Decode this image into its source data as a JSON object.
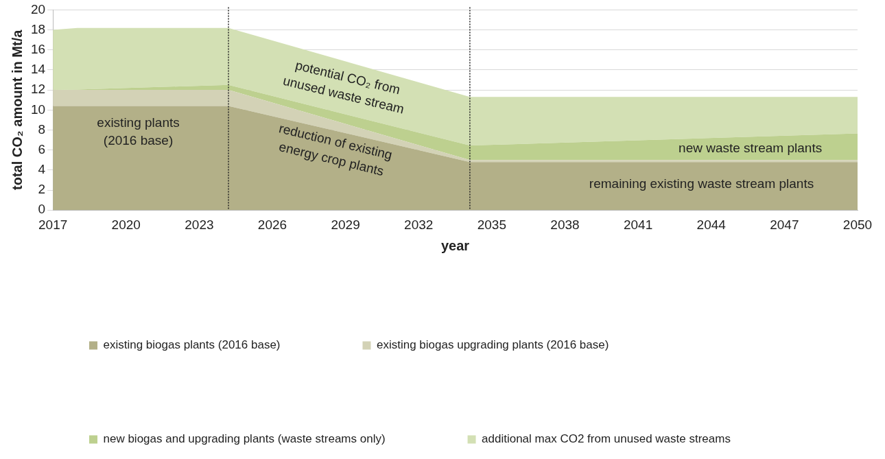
{
  "chart_data": {
    "type": "area",
    "stacked": true,
    "xlabel": "year",
    "ylabel": "total CO₂ amount in Mt/a",
    "x": [
      2017,
      2018,
      2024.2,
      2034.1,
      2050
    ],
    "series": [
      {
        "name": "existing biogas plants (2016 base)",
        "color": "#b3b088",
        "values": [
          10.4,
          10.4,
          10.4,
          4.8,
          4.8
        ]
      },
      {
        "name": "existing biogas upgrading plants (2016 base)",
        "color": "#d3d2b6",
        "values": [
          1.6,
          1.6,
          1.6,
          0.2,
          0.2
        ]
      },
      {
        "name": "new biogas and upgrading plants (waste streams only)",
        "color": "#bdd08f",
        "values": [
          0,
          0.05,
          0.5,
          1.45,
          2.65
        ]
      },
      {
        "name": "additional max CO2 from unused waste streams",
        "color": "#d3e0b4",
        "values": [
          6.0,
          6.15,
          5.7,
          4.85,
          3.65
        ]
      }
    ],
    "xlim": [
      2017,
      2050
    ],
    "xticks": [
      2017,
      2020,
      2023,
      2026,
      2029,
      2032,
      2035,
      2038,
      2041,
      2044,
      2047,
      2050
    ],
    "ylim": [
      0,
      20
    ],
    "yticks": [
      0,
      2,
      4,
      6,
      8,
      10,
      12,
      14,
      16,
      18,
      20
    ],
    "grid": "y",
    "legend": "bottom",
    "ref_lines": [
      {
        "axis": "x",
        "value": 2024.2,
        "color": "#222222",
        "line_style": "dotted"
      },
      {
        "axis": "x",
        "value": 2034.1,
        "color": "#222222",
        "line_style": "dotted"
      }
    ],
    "annotations": [
      "existing plants\n(2016 base)",
      "potential CO₂ from\nunused waste stream",
      "reduction of existing\nenergy crop plants",
      "new waste stream plants",
      "remaining existing waste stream plants"
    ]
  }
}
